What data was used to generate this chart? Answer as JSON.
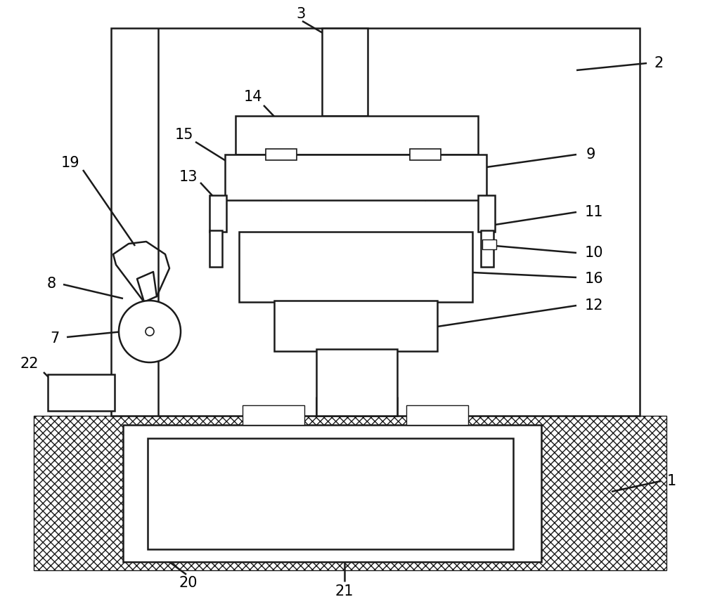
{
  "bg_color": "#ffffff",
  "line_color": "#1a1a1a",
  "line_width": 1.8,
  "fig_width": 10.0,
  "fig_height": 8.6
}
